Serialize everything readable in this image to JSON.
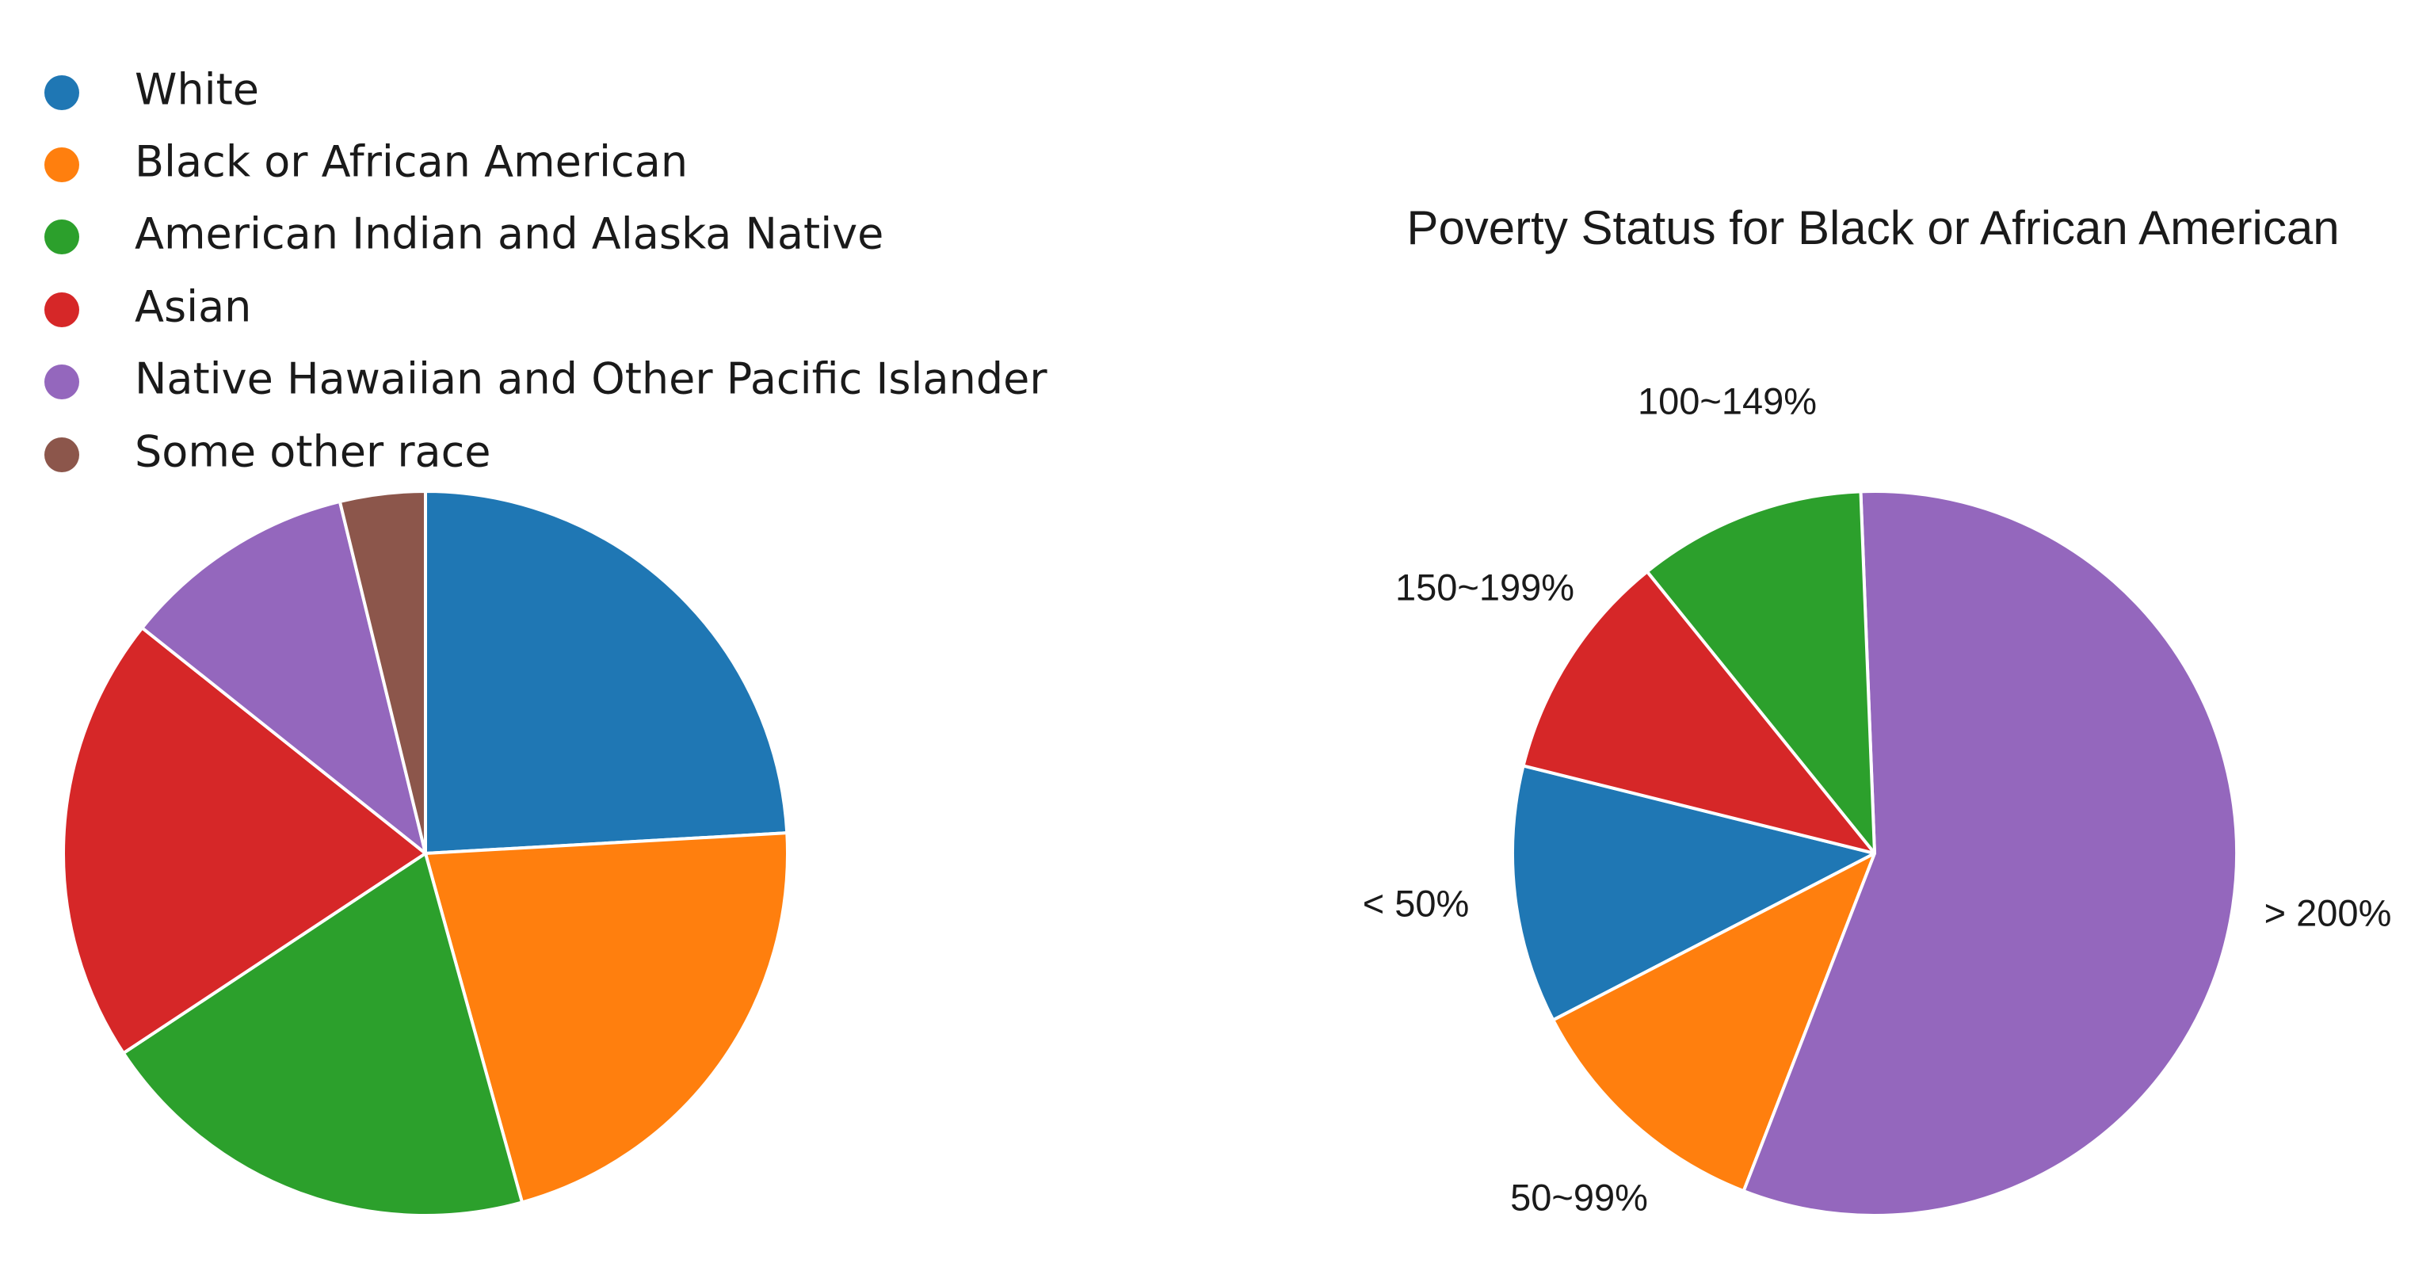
{
  "colors": [
    "#1f77b4",
    "#ff7f0e",
    "#2ca02c",
    "#d62728",
    "#9467bd",
    "#8c564b"
  ],
  "chart_data": [
    {
      "type": "pie",
      "title": "",
      "legend": {
        "placement": "top-left",
        "entries": [
          "White",
          "Black or African American",
          "American Indian and Alaska Native",
          "Asian",
          "Native Hawaiian and Other Pacific Islander",
          "Some other race"
        ]
      },
      "categories": [
        "White",
        "Black or African American",
        "American Indian and Alaska Native",
        "Asian",
        "Native Hawaiian and Other Pacific Islander",
        "Some other race"
      ],
      "values": [
        24.1,
        21.6,
        20.0,
        20.0,
        10.5,
        3.8
      ],
      "start_angle": 90,
      "direction": "clockwise"
    },
    {
      "type": "pie",
      "title": "Poverty Status for Black or African American",
      "categories": [
        "< 50%",
        "50~99%",
        "> 200%",
        "100~149%",
        "150~199%"
      ],
      "values": [
        11.5,
        11.5,
        56.5,
        10.2,
        10.3
      ],
      "slice_colors": [
        "#1f77b4",
        "#ff7f0e",
        "#9467bd",
        "#2ca02c",
        "#d62728"
      ],
      "start_angle": 166,
      "direction": "counterclockwise"
    }
  ]
}
